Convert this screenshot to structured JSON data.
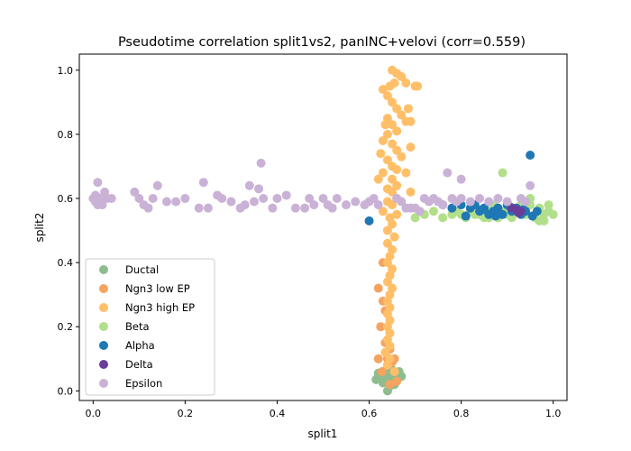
{
  "chart_data": {
    "type": "scatter",
    "title": "Pseudotime correlation split1vs2, panINC+velovi (corr=0.559)",
    "xlabel": "split1",
    "ylabel": "split2",
    "xlim": [
      -0.03,
      1.03
    ],
    "ylim": [
      -0.03,
      1.05
    ],
    "xticks": [
      "0.0",
      "0.2",
      "0.4",
      "0.6",
      "0.8",
      "1.0"
    ],
    "yticks": [
      "0.0",
      "0.2",
      "0.4",
      "0.6",
      "0.8",
      "1.0"
    ],
    "grid": false,
    "legend_position": "lower-left",
    "series": [
      {
        "name": "Ductal",
        "color": "#8fbc8f",
        "points": [
          [
            0.62,
            0.04
          ],
          [
            0.63,
            0.05
          ],
          [
            0.64,
            0.03
          ],
          [
            0.65,
            0.04
          ],
          [
            0.66,
            0.05
          ],
          [
            0.655,
            0.03
          ],
          [
            0.625,
            0.045
          ],
          [
            0.635,
            0.06
          ],
          [
            0.645,
            0.055
          ],
          [
            0.615,
            0.035
          ],
          [
            0.64,
            0.075
          ],
          [
            0.65,
            0.065
          ],
          [
            0.66,
            0.035
          ],
          [
            0.67,
            0.045
          ],
          [
            0.63,
            0.025
          ],
          [
            0.645,
            0.015
          ],
          [
            0.64,
            0.0
          ],
          [
            0.655,
            0.02
          ],
          [
            0.635,
            0.035
          ],
          [
            0.62,
            0.055
          ],
          [
            0.665,
            0.06
          ],
          [
            0.648,
            0.045
          ]
        ]
      },
      {
        "name": "Ngn3 low EP",
        "color": "#f4a460",
        "points": [
          [
            0.62,
            0.32
          ],
          [
            0.63,
            0.28
          ],
          [
            0.625,
            0.2
          ],
          [
            0.635,
            0.15
          ],
          [
            0.64,
            0.1
          ],
          [
            0.628,
            0.06
          ],
          [
            0.645,
            0.02
          ],
          [
            0.65,
            0.09
          ],
          [
            0.66,
            0.03
          ],
          [
            0.62,
            0.1
          ],
          [
            0.63,
            0.4
          ],
          [
            0.64,
            0.08
          ],
          [
            0.655,
            0.1
          ],
          [
            0.635,
            0.25
          ],
          [
            0.645,
            0.13
          ]
        ]
      },
      {
        "name": "Ngn3 high EP",
        "color": "#ffbf69",
        "points": [
          [
            0.65,
            1.0
          ],
          [
            0.66,
            0.99
          ],
          [
            0.67,
            0.98
          ],
          [
            0.655,
            0.96
          ],
          [
            0.645,
            0.95
          ],
          [
            0.63,
            0.94
          ],
          [
            0.68,
            0.96
          ],
          [
            0.7,
            0.95
          ],
          [
            0.705,
            0.95
          ],
          [
            0.64,
            0.92
          ],
          [
            0.65,
            0.9
          ],
          [
            0.66,
            0.88
          ],
          [
            0.67,
            0.86
          ],
          [
            0.68,
            0.84
          ],
          [
            0.64,
            0.85
          ],
          [
            0.65,
            0.83
          ],
          [
            0.66,
            0.81
          ],
          [
            0.64,
            0.8
          ],
          [
            0.63,
            0.78
          ],
          [
            0.65,
            0.77
          ],
          [
            0.66,
            0.75
          ],
          [
            0.67,
            0.73
          ],
          [
            0.64,
            0.72
          ],
          [
            0.65,
            0.7
          ],
          [
            0.66,
            0.69
          ],
          [
            0.63,
            0.68
          ],
          [
            0.65,
            0.66
          ],
          [
            0.66,
            0.64
          ],
          [
            0.64,
            0.63
          ],
          [
            0.65,
            0.62
          ],
          [
            0.66,
            0.6
          ],
          [
            0.64,
            0.59
          ],
          [
            0.65,
            0.58
          ],
          [
            0.63,
            0.56
          ],
          [
            0.66,
            0.55
          ],
          [
            0.645,
            0.54
          ],
          [
            0.65,
            0.52
          ],
          [
            0.64,
            0.5
          ],
          [
            0.655,
            0.48
          ],
          [
            0.64,
            0.46
          ],
          [
            0.65,
            0.44
          ],
          [
            0.645,
            0.42
          ],
          [
            0.64,
            0.4
          ],
          [
            0.65,
            0.38
          ],
          [
            0.645,
            0.36
          ],
          [
            0.64,
            0.34
          ],
          [
            0.65,
            0.32
          ],
          [
            0.645,
            0.3
          ],
          [
            0.64,
            0.28
          ],
          [
            0.645,
            0.26
          ],
          [
            0.64,
            0.24
          ],
          [
            0.645,
            0.22
          ],
          [
            0.64,
            0.2
          ],
          [
            0.645,
            0.18
          ],
          [
            0.64,
            0.16
          ],
          [
            0.645,
            0.14
          ],
          [
            0.635,
            0.12
          ],
          [
            0.645,
            0.1
          ],
          [
            0.64,
            0.08
          ],
          [
            0.655,
            0.06
          ],
          [
            0.69,
            0.76
          ],
          [
            0.69,
            0.84
          ],
          [
            0.685,
            0.88
          ],
          [
            0.635,
            0.83
          ],
          [
            0.625,
            0.74
          ],
          [
            0.69,
            0.62
          ],
          [
            0.68,
            0.68
          ],
          [
            0.62,
            0.66
          ]
        ]
      },
      {
        "name": "Beta",
        "color": "#b2df8a",
        "points": [
          [
            0.8,
            0.55
          ],
          [
            0.82,
            0.56
          ],
          [
            0.84,
            0.55
          ],
          [
            0.86,
            0.56
          ],
          [
            0.88,
            0.54
          ],
          [
            0.9,
            0.55
          ],
          [
            0.92,
            0.56
          ],
          [
            0.94,
            0.55
          ],
          [
            0.96,
            0.54
          ],
          [
            0.98,
            0.55
          ],
          [
            0.99,
            0.56
          ],
          [
            0.97,
            0.57
          ],
          [
            0.95,
            0.58
          ],
          [
            0.93,
            0.56
          ],
          [
            0.91,
            0.54
          ],
          [
            0.89,
            0.56
          ],
          [
            0.87,
            0.58
          ],
          [
            0.85,
            0.54
          ],
          [
            0.83,
            0.55
          ],
          [
            0.81,
            0.54
          ],
          [
            0.78,
            0.55
          ],
          [
            0.76,
            0.54
          ],
          [
            0.74,
            0.56
          ],
          [
            0.72,
            0.55
          ],
          [
            0.7,
            0.54
          ],
          [
            0.89,
            0.68
          ],
          [
            0.95,
            0.6
          ],
          [
            0.97,
            0.53
          ],
          [
            0.99,
            0.58
          ],
          [
            1.0,
            0.55
          ],
          [
            0.98,
            0.53
          ],
          [
            0.93,
            0.58
          ],
          [
            0.86,
            0.54
          ],
          [
            0.79,
            0.56
          ]
        ]
      },
      {
        "name": "Alpha",
        "color": "#1f78b4",
        "points": [
          [
            0.8,
            0.58
          ],
          [
            0.82,
            0.57
          ],
          [
            0.84,
            0.56
          ],
          [
            0.86,
            0.55
          ],
          [
            0.88,
            0.57
          ],
          [
            0.9,
            0.58
          ],
          [
            0.92,
            0.57
          ],
          [
            0.94,
            0.56
          ],
          [
            0.83,
            0.58
          ],
          [
            0.85,
            0.57
          ],
          [
            0.87,
            0.56
          ],
          [
            0.89,
            0.55
          ],
          [
            0.91,
            0.56
          ],
          [
            0.93,
            0.55
          ],
          [
            0.78,
            0.57
          ],
          [
            0.76,
            0.58
          ],
          [
            0.95,
            0.735
          ],
          [
            0.6,
            0.53
          ],
          [
            0.81,
            0.545
          ],
          [
            0.845,
            0.565
          ],
          [
            0.875,
            0.545
          ],
          [
            0.905,
            0.575
          ],
          [
            0.935,
            0.565
          ],
          [
            0.955,
            0.545
          ],
          [
            0.965,
            0.56
          ]
        ]
      },
      {
        "name": "Delta",
        "color": "#6a3d9a",
        "points": [
          [
            0.91,
            0.57
          ],
          [
            0.93,
            0.56
          ],
          [
            0.925,
            0.555
          ],
          [
            0.92,
            0.565
          ]
        ]
      },
      {
        "name": "Epsilon",
        "color": "#cab2d6",
        "points": [
          [
            0.0,
            0.6
          ],
          [
            0.005,
            0.59
          ],
          [
            0.01,
            0.65
          ],
          [
            0.015,
            0.6
          ],
          [
            0.02,
            0.58
          ],
          [
            0.025,
            0.62
          ],
          [
            0.03,
            0.6
          ],
          [
            0.04,
            0.6
          ],
          [
            0.005,
            0.61
          ],
          [
            0.01,
            0.58
          ],
          [
            0.09,
            0.62
          ],
          [
            0.1,
            0.6
          ],
          [
            0.11,
            0.58
          ],
          [
            0.12,
            0.57
          ],
          [
            0.13,
            0.6
          ],
          [
            0.14,
            0.64
          ],
          [
            0.16,
            0.59
          ],
          [
            0.18,
            0.59
          ],
          [
            0.2,
            0.6
          ],
          [
            0.23,
            0.57
          ],
          [
            0.24,
            0.65
          ],
          [
            0.25,
            0.57
          ],
          [
            0.27,
            0.61
          ],
          [
            0.28,
            0.6
          ],
          [
            0.3,
            0.59
          ],
          [
            0.32,
            0.57
          ],
          [
            0.33,
            0.58
          ],
          [
            0.34,
            0.64
          ],
          [
            0.35,
            0.59
          ],
          [
            0.36,
            0.63
          ],
          [
            0.365,
            0.71
          ],
          [
            0.37,
            0.6
          ],
          [
            0.39,
            0.57
          ],
          [
            0.4,
            0.6
          ],
          [
            0.42,
            0.61
          ],
          [
            0.44,
            0.57
          ],
          [
            0.46,
            0.57
          ],
          [
            0.47,
            0.6
          ],
          [
            0.48,
            0.58
          ],
          [
            0.5,
            0.6
          ],
          [
            0.51,
            0.58
          ],
          [
            0.52,
            0.57
          ],
          [
            0.53,
            0.6
          ],
          [
            0.55,
            0.58
          ],
          [
            0.57,
            0.59
          ],
          [
            0.59,
            0.58
          ],
          [
            0.6,
            0.59
          ],
          [
            0.61,
            0.6
          ],
          [
            0.62,
            0.58
          ],
          [
            0.72,
            0.6
          ],
          [
            0.73,
            0.59
          ],
          [
            0.74,
            0.6
          ],
          [
            0.75,
            0.59
          ],
          [
            0.76,
            0.58
          ],
          [
            0.78,
            0.6
          ],
          [
            0.79,
            0.59
          ],
          [
            0.8,
            0.6
          ],
          [
            0.82,
            0.59
          ],
          [
            0.84,
            0.6
          ],
          [
            0.86,
            0.59
          ],
          [
            0.88,
            0.6
          ],
          [
            0.9,
            0.59
          ],
          [
            0.93,
            0.6
          ],
          [
            0.94,
            0.59
          ],
          [
            0.95,
            0.64
          ],
          [
            0.7,
            0.57
          ],
          [
            0.71,
            0.56
          ],
          [
            0.77,
            0.68
          ],
          [
            0.8,
            0.66
          ],
          [
            0.69,
            0.57
          ],
          [
            0.67,
            0.59
          ],
          [
            0.66,
            0.6
          ],
          [
            0.68,
            0.57
          ]
        ]
      }
    ]
  }
}
